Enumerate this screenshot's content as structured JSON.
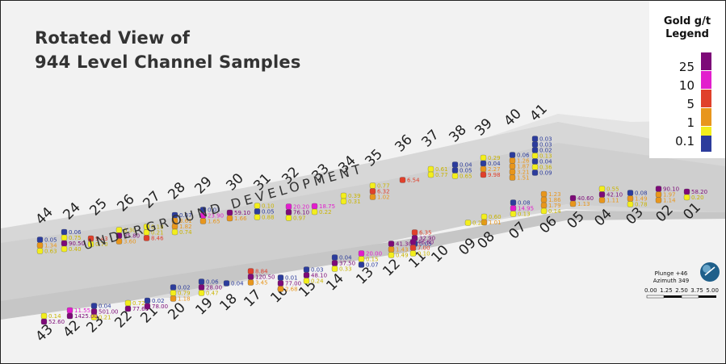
{
  "title": {
    "line1": "Rotated View of",
    "line2": "944 Level Channel Samples"
  },
  "drift_label": "UNDERGROUND DEVELOPMENT",
  "legend": {
    "title_line1": "Gold g/t",
    "title_line2": "Legend",
    "entries": [
      {
        "label": "25",
        "color": "#7d0a78"
      },
      {
        "label": "10",
        "color": "#e21ecd"
      },
      {
        "label": "5",
        "color": "#e0402b"
      },
      {
        "label": "1",
        "color": "#e8961c"
      },
      {
        "label": "0.1",
        "color": "#f3ee1c"
      },
      {
        "label": "",
        "color": "#2c3c9c"
      }
    ]
  },
  "orientation": {
    "plunge": "Plunge +46",
    "azimuth": "Azimuth 349"
  },
  "scale_ticks": [
    "0.00",
    "1.25",
    "2.50",
    "3.75",
    "5.00"
  ],
  "channels": [
    {
      "id": "44",
      "values": [
        "0.05",
        "1.34",
        "0.63"
      ]
    },
    {
      "id": "24",
      "values": [
        "0.06",
        "0.75",
        "90.50",
        "0.40"
      ]
    },
    {
      "id": "25",
      "values": [
        "9.43",
        "0.70"
      ]
    },
    {
      "id": "26",
      "values": [
        "0.30",
        "35.80",
        "3.60"
      ]
    },
    {
      "id": "27",
      "values": [
        "0.18",
        "0.21",
        "8.46"
      ]
    },
    {
      "id": "28",
      "values": [
        "0.07",
        "3.61",
        "1.82",
        "0.74"
      ]
    },
    {
      "id": "29",
      "values": [
        "0.03",
        "23.90",
        "1.65"
      ]
    },
    {
      "id": "30",
      "values": [
        "59.10",
        "1.66"
      ]
    },
    {
      "id": "31",
      "values": [
        "0.10",
        "0.05",
        "0.88"
      ]
    },
    {
      "id": "32",
      "values": [
        "20.20",
        "76.10",
        "0.97"
      ]
    },
    {
      "id": "33",
      "values": [
        "18.75",
        "0.22"
      ]
    },
    {
      "id": "34",
      "values": [
        "0.39",
        "0.31"
      ]
    },
    {
      "id": "35",
      "values": [
        "0.77",
        "6.32",
        "1.02"
      ]
    },
    {
      "id": "36",
      "values": [
        "6.54"
      ]
    },
    {
      "id": "37",
      "values": [
        "0.61",
        "0.77"
      ]
    },
    {
      "id": "38",
      "values": [
        "0.04",
        "0.05",
        "0.65"
      ]
    },
    {
      "id": "39",
      "values": [
        "0.29",
        "0.04",
        "2.27",
        "9.98"
      ]
    },
    {
      "id": "40",
      "values": [
        "0.06",
        "1.26",
        "1.87",
        "3.21",
        "1.51"
      ]
    },
    {
      "id": "41",
      "values": [
        "0.03",
        "0.03",
        "0.02",
        "0.13",
        "0.04",
        "0.36",
        "0.09"
      ]
    },
    {
      "id": "01",
      "values": [
        "58.20",
        "0.20"
      ]
    },
    {
      "id": "02",
      "values": [
        "90.10",
        "1.97",
        "1.14"
      ]
    },
    {
      "id": "03",
      "values": [
        "0.08",
        "1.49",
        "0.78"
      ]
    },
    {
      "id": "04",
      "values": [
        "0.55",
        "42.10",
        "1.11"
      ]
    },
    {
      "id": "05",
      "values": [
        "40.60",
        "1.13"
      ]
    },
    {
      "id": "06",
      "values": [
        "1.23",
        "1.86",
        "1.79",
        "0.14"
      ]
    },
    {
      "id": "07",
      "values": [
        "0.08",
        "14.95",
        "0.13"
      ]
    },
    {
      "id": "08",
      "values": [
        "0.60",
        "1.01"
      ]
    },
    {
      "id": "09",
      "values": [
        "0.22"
      ]
    },
    {
      "id": "10",
      "values": [
        "6.35",
        "32.90",
        "0.05"
      ]
    },
    {
      "id": "11",
      "values": [
        "46.60",
        "7.00",
        "0.10"
      ]
    },
    {
      "id": "12",
      "values": [
        "41.30",
        "1.43",
        "0.49"
      ]
    },
    {
      "id": "13",
      "values": [
        "20.00",
        "0.15",
        "0.07"
      ]
    },
    {
      "id": "14",
      "values": [
        "0.04",
        "37.50",
        "0.33"
      ]
    },
    {
      "id": "15",
      "values": [
        "0.03",
        "48.10",
        "0.24"
      ]
    },
    {
      "id": "16",
      "values": [
        "0.01",
        "77.00",
        "2.68"
      ]
    },
    {
      "id": "17",
      "values": [
        "8.84",
        "120.50",
        "3.45"
      ]
    },
    {
      "id": "18",
      "values": [
        "0.04"
      ]
    },
    {
      "id": "19",
      "values": [
        "0.06",
        "28.00",
        "0.47"
      ]
    },
    {
      "id": "20",
      "values": [
        "0.02",
        "0.79",
        "1.18"
      ]
    },
    {
      "id": "21",
      "values": [
        "0.02",
        "78.00"
      ]
    },
    {
      "id": "22",
      "values": [
        "0.72",
        "77.60"
      ]
    },
    {
      "id": "23",
      "values": [
        "0.04",
        "501.00",
        "0.21"
      ]
    },
    {
      "id": "42",
      "values": [
        "11.55",
        "1425.00"
      ]
    },
    {
      "id": "43",
      "values": [
        "0.14",
        "52.60"
      ]
    }
  ]
}
